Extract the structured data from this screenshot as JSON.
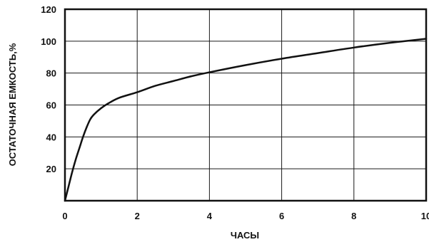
{
  "chart_data": {
    "type": "line",
    "xlabel": "ЧАСЫ",
    "ylabel": "ОСТАТОЧНАЯ  ЕМКОСТЬ,%",
    "xlim": [
      0,
      10
    ],
    "ylim": [
      0,
      120
    ],
    "x_ticks": [
      "0",
      "2",
      "4",
      "6",
      "8",
      "10"
    ],
    "y_ticks": [
      "20",
      "40",
      "60",
      "80",
      "100",
      "120"
    ],
    "grid": true,
    "series": [
      {
        "x": [
          0,
          0.1,
          0.2,
          0.3,
          0.4,
          0.5,
          0.6,
          0.7,
          0.8,
          1.0,
          1.2,
          1.5,
          2,
          2.5,
          3,
          3.5,
          4,
          5,
          6,
          7,
          8,
          9,
          10
        ],
        "y": [
          0,
          9,
          18,
          26,
          33,
          40,
          46,
          51,
          54,
          58,
          61,
          64.5,
          68,
          72,
          75,
          78,
          80.5,
          85,
          89,
          92.5,
          96,
          99,
          101.5
        ]
      }
    ]
  }
}
